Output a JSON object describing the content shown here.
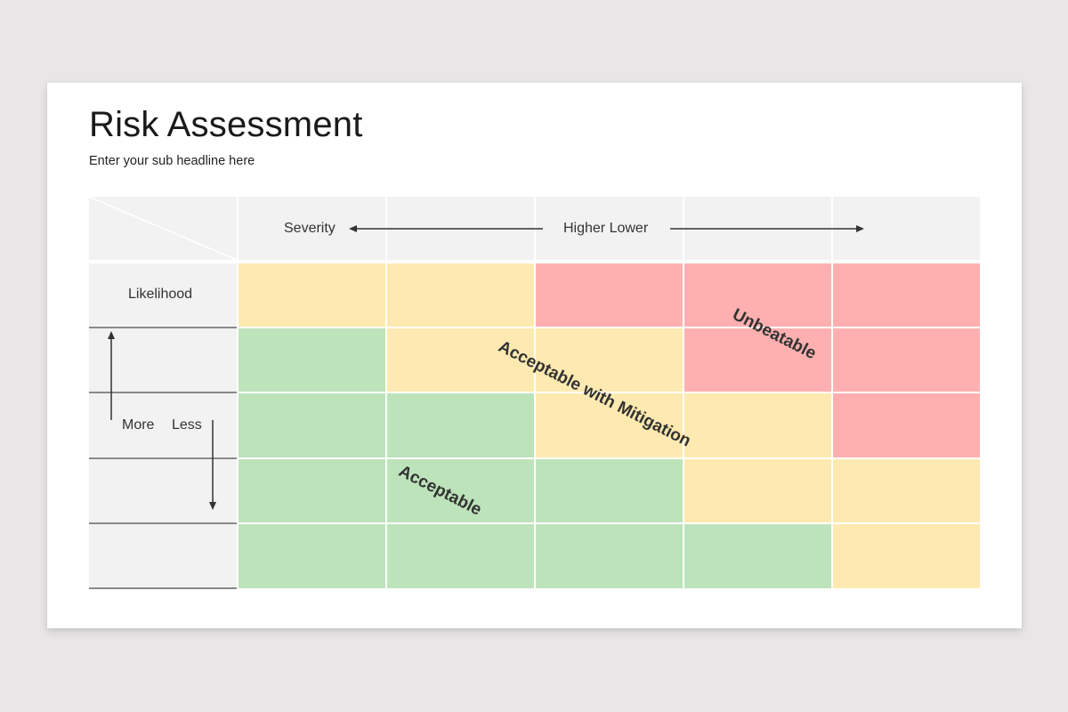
{
  "slide": {
    "title": "Risk Assessment",
    "subtitle": "Enter your sub headline here"
  },
  "matrix": {
    "header": {
      "severity_label": "Severity",
      "direction_label": "Higher Lower"
    },
    "side": {
      "likelihood_label": "Likelihood",
      "more_label": "More",
      "less_label": "Less"
    },
    "colors": {
      "green": "#bde3bb",
      "yellow": "#feeab1",
      "red": "#feb0b0",
      "header_bg": "#f2f2f2"
    },
    "rows": [
      [
        "yellow",
        "yellow",
        "red",
        "red",
        "red"
      ],
      [
        "green",
        "yellow",
        "yellow",
        "red",
        "red"
      ],
      [
        "green",
        "green",
        "yellow",
        "yellow",
        "red"
      ],
      [
        "green",
        "green",
        "green",
        "yellow",
        "yellow"
      ],
      [
        "green",
        "green",
        "green",
        "green",
        "yellow"
      ]
    ],
    "zone_labels": {
      "unbeatable": "Unbeatable",
      "mitigation": "Acceptable with Mitigation",
      "acceptable": "Acceptable"
    }
  }
}
